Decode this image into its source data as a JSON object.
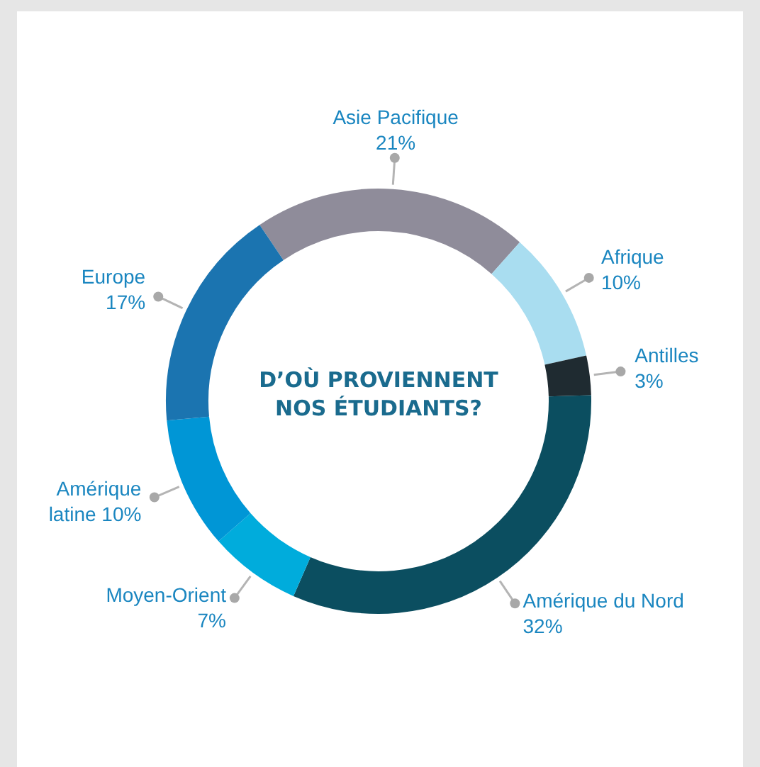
{
  "chart_data": {
    "type": "donut",
    "title": "D’OÙ PROVIENNENT NOS ÉTUDIANTS?",
    "categories": [
      "Asie Pacifique",
      "Afrique",
      "Antilles",
      "Amérique du Nord",
      "Moyen-Orient",
      "Amérique latine",
      "Europe"
    ],
    "values": [
      21,
      10,
      3,
      32,
      7,
      10,
      17
    ],
    "colors": [
      "#8f8c9a",
      "#a9ddf0",
      "#1f2b31",
      "#0b4e60",
      "#00acdc",
      "#0096d6",
      "#1b74b0"
    ],
    "value_labels": [
      "21%",
      "10%",
      "3%",
      "32%",
      "7%",
      "10%",
      "17%"
    ],
    "legend": false
  }
}
